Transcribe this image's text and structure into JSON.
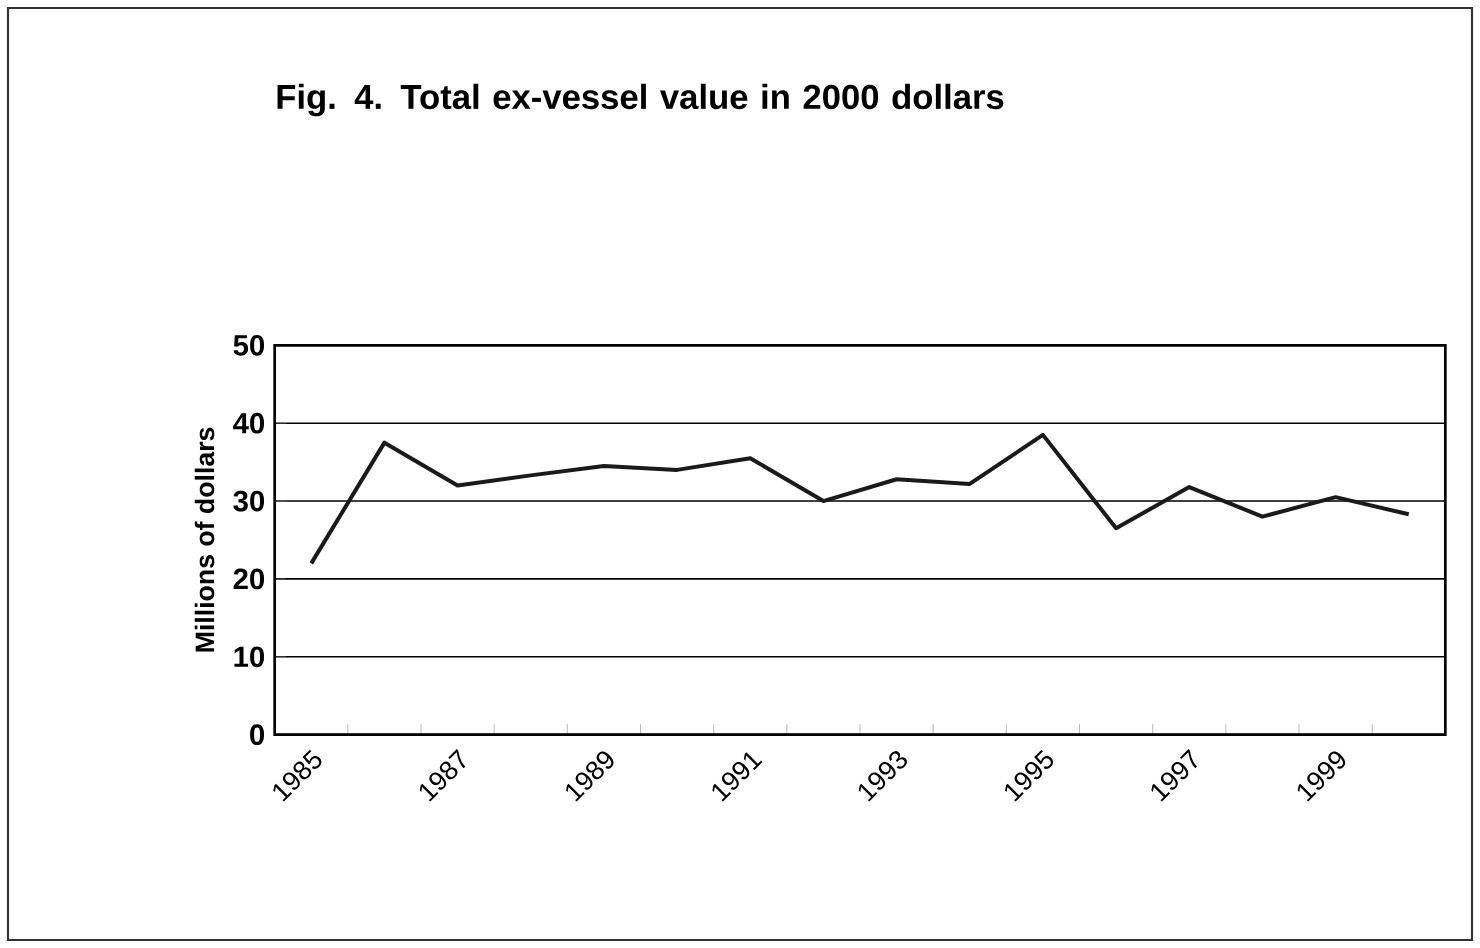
{
  "chart_data": {
    "type": "line",
    "title": "Fig. 4.  Total ex-vessel value in 2000 dollars",
    "ylabel": "Millions of dollars",
    "categories": [
      "1985",
      null,
      "1987",
      null,
      "1989",
      null,
      "1991",
      null,
      "1993",
      null,
      "1995",
      null,
      "1997",
      null,
      "1999",
      null
    ],
    "values": [
      22,
      37.5,
      32,
      33.3,
      34.5,
      34,
      35.5,
      30,
      32.8,
      32.2,
      38.5,
      26.5,
      31.8,
      28,
      30.5,
      28.3
    ],
    "color": "#1a1a1a",
    "ylim": [
      0,
      50
    ],
    "yticks": [
      0,
      10,
      20,
      30,
      40,
      50
    ],
    "grid": "y",
    "marker": "none",
    "line_style": "solid"
  }
}
